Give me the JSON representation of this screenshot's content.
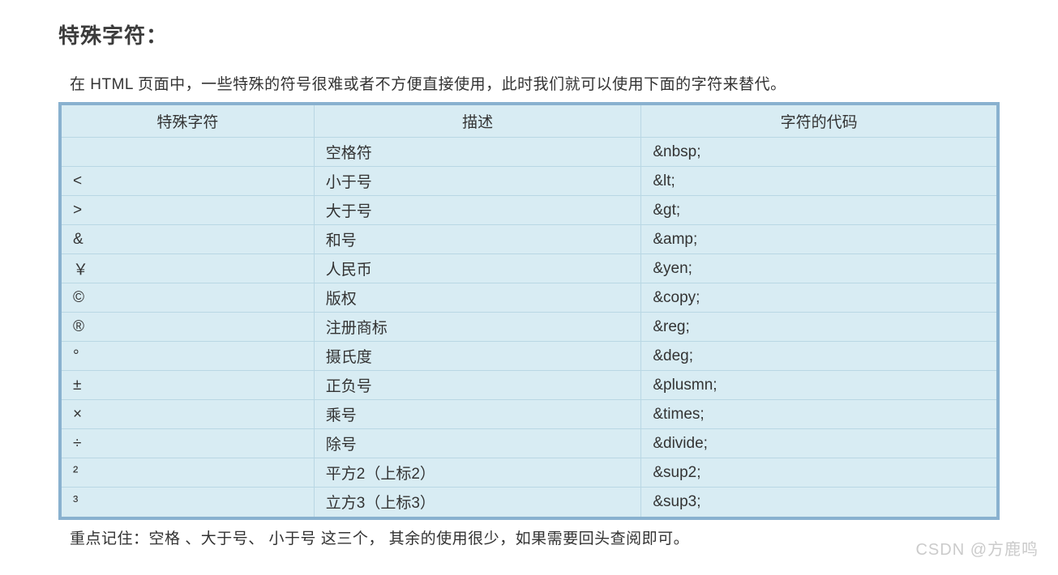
{
  "title": "特殊字符：",
  "intro": "在 HTML 页面中，一些特殊的符号很难或者不方便直接使用，此时我们就可以使用下面的字符来替代。",
  "table": {
    "columns": [
      "特殊字符",
      "描述",
      "字符的代码"
    ],
    "col_widths": [
      "27%",
      "35%",
      "38%"
    ],
    "header_align": "center",
    "cell_align": "left",
    "background_color": "#d8ecf3",
    "border_color": "#89b1cf",
    "grid_color": "#b9d7e4",
    "fontsize": 19,
    "rows": [
      {
        "char": "",
        "desc": "空格符",
        "code": "&nbsp;"
      },
      {
        "char": "<",
        "desc": "小于号",
        "code": "&lt;"
      },
      {
        "char": ">",
        "desc": "大于号",
        "code": "&gt;"
      },
      {
        "char": "&",
        "desc": "和号",
        "code": "&amp;"
      },
      {
        "char": "￥",
        "desc": "人民币",
        "code": "&yen;"
      },
      {
        "char": "©",
        "desc": "版权",
        "code": "&copy;"
      },
      {
        "char": "®",
        "desc": "注册商标",
        "code": "&reg;"
      },
      {
        "char": "°",
        "desc": "摄氏度",
        "code": "&deg;"
      },
      {
        "char": "±",
        "desc": "正负号",
        "code": "&plusmn;"
      },
      {
        "char": "×",
        "desc": "乘号",
        "code": "&times;"
      },
      {
        "char": "÷",
        "desc": "除号",
        "code": "&divide;"
      },
      {
        "char": "²",
        "desc": "平方2（上标2）",
        "code": "&sup2;"
      },
      {
        "char": "³",
        "desc": "立方3（上标3）",
        "code": "&sup3;"
      }
    ]
  },
  "footnote": "重点记住：空格 、大于号、 小于号 这三个， 其余的使用很少，如果需要回头查阅即可。",
  "watermark": "CSDN @方鹿鸣"
}
